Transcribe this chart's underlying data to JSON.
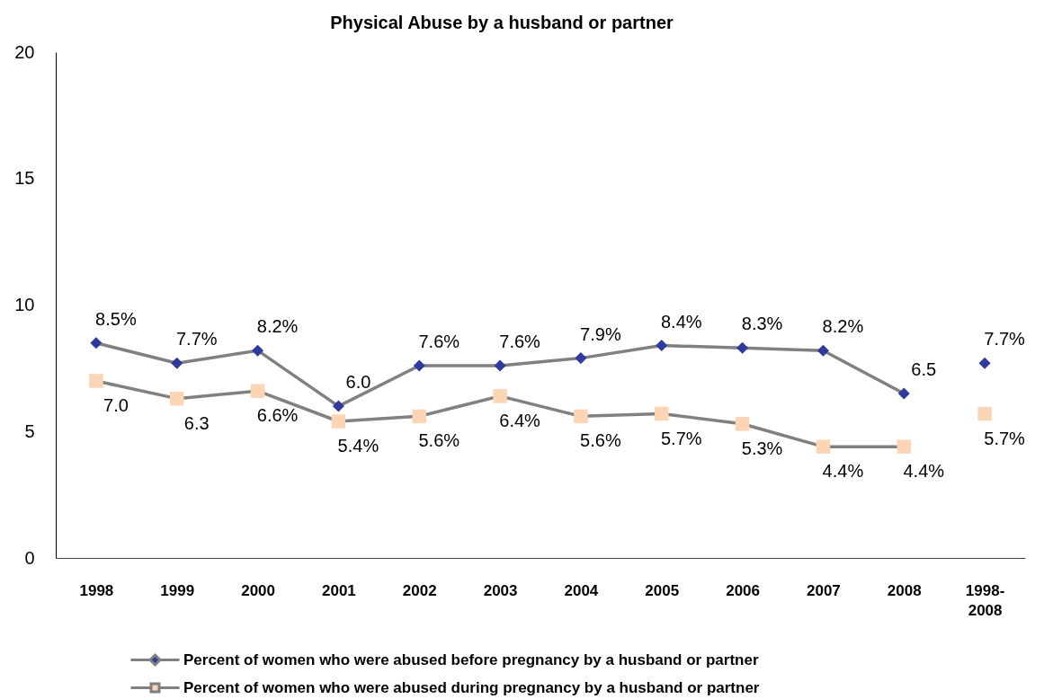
{
  "chart_data": {
    "type": "line",
    "title": "Physical Abuse by a husband or partner",
    "categories": [
      "1998",
      "1999",
      "2000",
      "2001",
      "2002",
      "2003",
      "2004",
      "2005",
      "2006",
      "2007",
      "2008",
      "1998-2008"
    ],
    "series": [
      {
        "name": "Percent of women who were abused before pregnancy by a husband or partner",
        "color": "#808080",
        "marker": "diamond",
        "colors": [
          "#2f3a9c",
          "#2f3a9c",
          "#2f3a9c",
          "#2f3a9c",
          "#2f3a9c",
          "#2f3a9c",
          "#2f3a9c",
          "#2f3a9c",
          "#2f3a9c",
          "#2f3a9c",
          "#2f3a9c",
          null
        ],
        "values": [
          8.5,
          7.7,
          8.2,
          6.0,
          7.6,
          7.6,
          7.9,
          8.4,
          8.3,
          8.2,
          6.5,
          null
        ],
        "value_labels": [
          "8.5%",
          "7.7%",
          "8.2%",
          "6.0",
          "7.6%",
          "7.6%",
          "7.9%",
          "8.4%",
          "8.3%",
          "8.2%",
          "6.5",
          null
        ]
      },
      {
        "name": "Percent of women who were abused during pregnancy by a husband or partner",
        "color": "#808080",
        "marker": "square",
        "colors": [
          "#fcd5b5",
          "#fcd5b5",
          "#fcd5b5",
          "#fcd5b5",
          "#fcd5b5",
          "#fcd5b5",
          "#fcd5b5",
          "#fcd5b5",
          "#fcd5b5",
          "#fcd5b5",
          "#fcd5b5",
          null
        ],
        "values": [
          7.0,
          6.3,
          6.6,
          5.4,
          5.6,
          6.4,
          5.6,
          5.7,
          5.3,
          4.4,
          4.4,
          null
        ],
        "value_labels": [
          "7.0",
          "6.3",
          "6.6%",
          "5.4%",
          "5.6%",
          "6.4%",
          "5.6%",
          "5.7%",
          "5.3%",
          "4.4%",
          "4.4%",
          null
        ]
      },
      {
        "type": "scatter",
        "x": [
          "1998-2008"
        ],
        "color": "#2f3a9c",
        "marker": "diamond",
        "values": [
          7.7
        ],
        "value_labels": [
          "7.7%"
        ]
      },
      {
        "type": "scatter",
        "x": [
          "1998-2008"
        ],
        "color": "#fcd5b5",
        "marker": "square",
        "values": [
          5.7
        ],
        "value_labels": [
          "5.7%"
        ]
      }
    ],
    "ylim": [
      0,
      20
    ],
    "yticks": [
      0,
      5,
      10,
      15,
      20
    ],
    "legend": "bottom"
  }
}
